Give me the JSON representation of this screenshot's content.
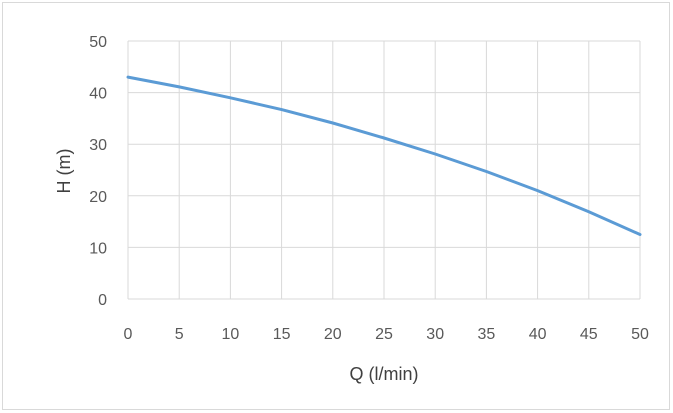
{
  "chart_data": {
    "type": "line",
    "title": "",
    "xlabel": "Q (l/min)",
    "ylabel": "H (m)",
    "xlim": [
      0,
      50
    ],
    "ylim": [
      0,
      50
    ],
    "x_ticks": [
      0,
      5,
      10,
      15,
      20,
      25,
      30,
      35,
      40,
      45,
      50
    ],
    "y_ticks": [
      0,
      10,
      20,
      30,
      40,
      50
    ],
    "grid": true,
    "legend": "none",
    "series": [
      {
        "x": [
          0,
          5,
          10,
          15,
          20,
          25,
          30,
          35,
          40,
          45,
          50
        ],
        "y": [
          43.0,
          41.1,
          39.0,
          36.7,
          34.1,
          31.2,
          28.1,
          24.7,
          21.0,
          16.9,
          12.5
        ],
        "color": "#5b9bd5"
      }
    ]
  }
}
